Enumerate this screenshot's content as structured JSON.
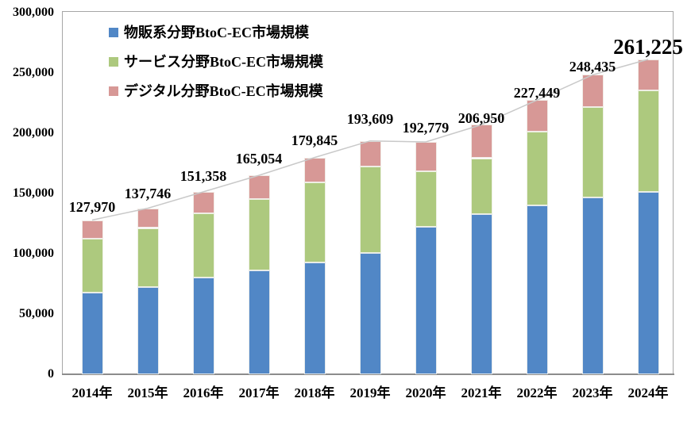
{
  "chart_data": {
    "type": "bar",
    "stacked": true,
    "title": "",
    "xlabel": "",
    "ylabel": "",
    "grid": false,
    "legend_position": "top-left-inside",
    "background_color": "#ffffff",
    "plot_border_color": "#a6a6a6",
    "total_line_color": "#c9c9c9",
    "categories": [
      "2014年",
      "2015年",
      "2016年",
      "2017年",
      "2018年",
      "2019年",
      "2020年",
      "2021年",
      "2022年",
      "2023年",
      "2024年"
    ],
    "series": [
      {
        "key": "physical",
        "name": "物販系分野BtoC-EC市場規模",
        "color": "#5187C6",
        "values": [
          68043,
          72398,
          80043,
          86008,
          92992,
          100515,
          122333,
          132865,
          139997,
          146760,
          151127
        ]
      },
      {
        "key": "service",
        "name": "サービス分野BtoC-EC市場規模",
        "color": "#ADC97E",
        "values": [
          44816,
          49014,
          53532,
          59568,
          66471,
          71672,
          45832,
          46424,
          61477,
          75169,
          84280
        ]
      },
      {
        "key": "digital",
        "name": "デジタル分野BtoC-EC市場規模",
        "color": "#D79896",
        "values": [
          15111,
          16334,
          17782,
          19478,
          20382,
          21422,
          24614,
          27661,
          25974,
          26506,
          25818
        ]
      }
    ],
    "totals": [
      127970,
      137746,
      151358,
      165054,
      179845,
      193609,
      192779,
      206950,
      227449,
      248435,
      261225
    ],
    "total_labels": [
      "127,970",
      "137,746",
      "151,358",
      "165,054",
      "179,845",
      "193,609",
      "192,779",
      "206,950",
      "227,449",
      "248,435",
      "261,225"
    ],
    "y_axis": {
      "min": 0,
      "max": 300000,
      "tick_interval": 50000,
      "tick_labels": [
        "0",
        "50,000",
        "100,000",
        "150,000",
        "200,000",
        "250,000",
        "300,000"
      ]
    }
  }
}
